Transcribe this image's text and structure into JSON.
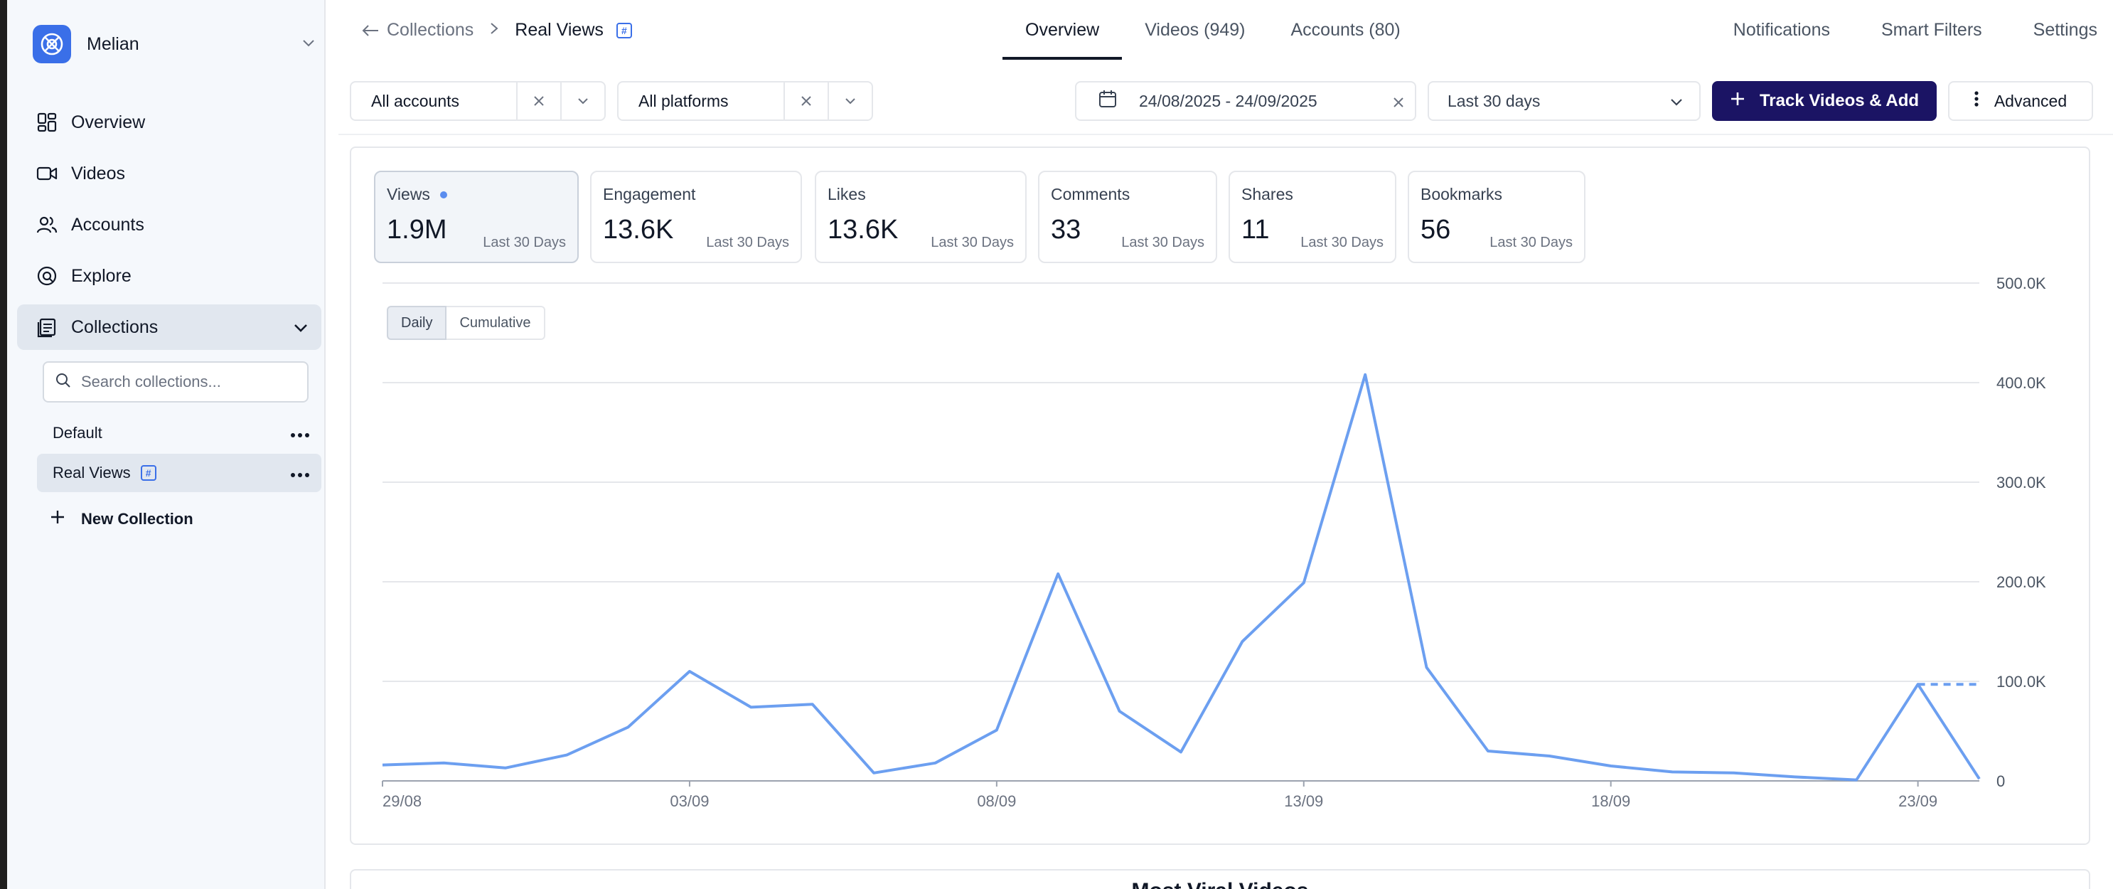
{
  "workspace": {
    "name": "Melian"
  },
  "sidebar": {
    "nav": [
      {
        "label": "Overview",
        "icon": "dashboard-icon"
      },
      {
        "label": "Videos",
        "icon": "video-icon"
      },
      {
        "label": "Accounts",
        "icon": "users-icon"
      },
      {
        "label": "Explore",
        "icon": "explore-icon"
      },
      {
        "label": "Collections",
        "icon": "collections-icon"
      }
    ],
    "search_placeholder": "Search collections...",
    "collections": [
      {
        "label": "Default"
      },
      {
        "label": "Real Views"
      }
    ],
    "new_collection": "New Collection"
  },
  "header": {
    "breadcrumb_parent": "Collections",
    "breadcrumb_current": "Real Views",
    "tabs": [
      {
        "label": "Overview"
      },
      {
        "label": "Videos (949)"
      },
      {
        "label": "Accounts (80)"
      }
    ],
    "links": [
      {
        "label": "Notifications"
      },
      {
        "label": "Smart Filters"
      },
      {
        "label": "Settings"
      }
    ]
  },
  "filters": {
    "accounts": "All accounts",
    "platforms": "All platforms",
    "date_range": "24/08/2025 - 24/09/2025",
    "period": "Last 30 days",
    "track_button": "Track Videos & Add",
    "advanced_button": "Advanced"
  },
  "metrics": [
    {
      "label": "Views",
      "value": "1.9M",
      "period": "Last 30 Days"
    },
    {
      "label": "Engagement",
      "value": "13.6K",
      "period": "Last 30 Days"
    },
    {
      "label": "Likes",
      "value": "13.6K",
      "period": "Last 30 Days"
    },
    {
      "label": "Comments",
      "value": "33",
      "period": "Last 30 Days"
    },
    {
      "label": "Shares",
      "value": "11",
      "period": "Last 30 Days"
    },
    {
      "label": "Bookmarks",
      "value": "56",
      "period": "Last 30 Days"
    }
  ],
  "chart_modes": {
    "daily": "Daily",
    "cumulative": "Cumulative"
  },
  "colors": {
    "accent": "#1b1464",
    "brand": "#3a6fe8",
    "line": "#6c9ff0"
  },
  "chart_data": {
    "type": "line",
    "title": "",
    "xlabel": "",
    "ylabel": "",
    "ylim": [
      0,
      500000
    ],
    "y_ticks": [
      0,
      100000,
      200000,
      300000,
      400000,
      500000
    ],
    "y_tick_labels": [
      "0",
      "100.0K",
      "200.0K",
      "300.0K",
      "400.0K",
      "500.0K"
    ],
    "x_tick_labels": [
      {
        "day": 0,
        "label": "29/08"
      },
      {
        "day": 5,
        "label": "03/09"
      },
      {
        "day": 10,
        "label": "08/09"
      },
      {
        "day": 15,
        "label": "13/09"
      },
      {
        "day": 20,
        "label": "18/09"
      },
      {
        "day": 25,
        "label": "23/09"
      }
    ],
    "y_axis_position": "right",
    "grid": true,
    "series": [
      {
        "values": [
          16000,
          18000,
          13000,
          26000,
          54000,
          110000,
          74000,
          77000,
          8000,
          18000,
          51000,
          208000,
          70000,
          29000,
          140000,
          199000,
          408000,
          114000,
          30000,
          25000,
          15000,
          9000,
          8000,
          4000,
          1000,
          97000,
          2000
        ],
        "projected": [
          97000,
          97000
        ]
      }
    ]
  },
  "below": {
    "title": "Most Viral Videos"
  }
}
